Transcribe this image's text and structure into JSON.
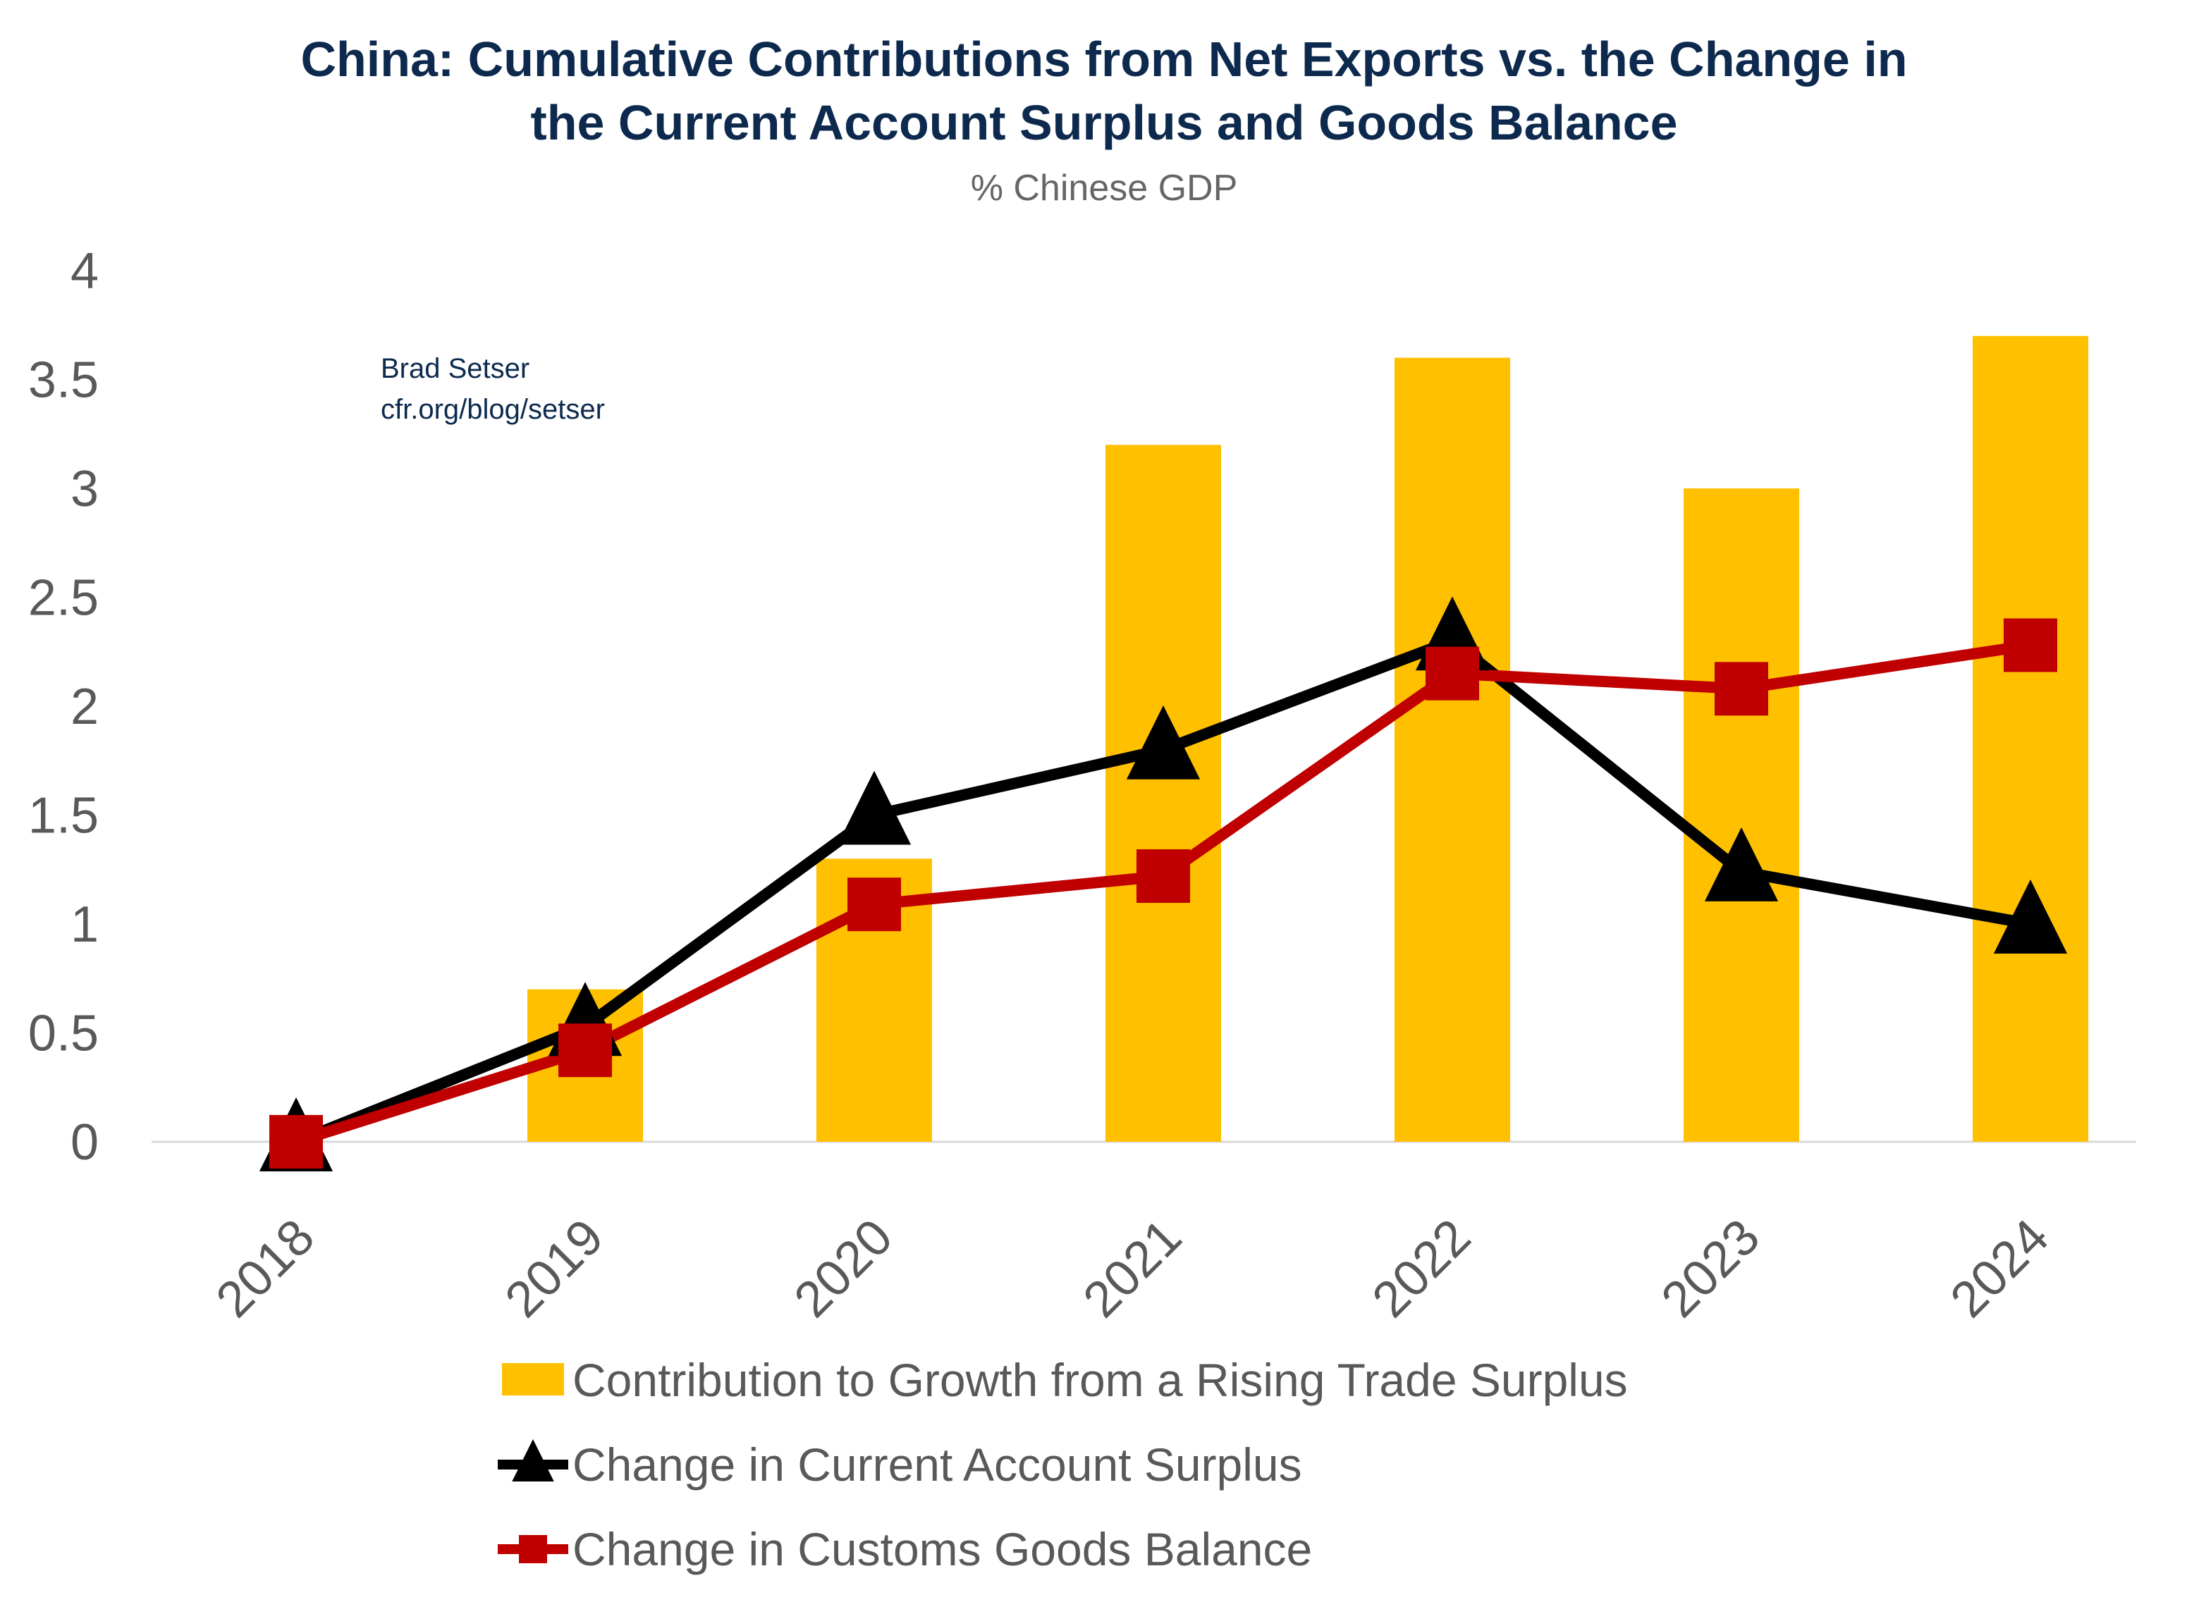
{
  "chart_data": {
    "type": "bar+line",
    "title_lines": [
      "China: Cumulative Contributions from Net Exports vs. the Change in",
      "the Current Account Surplus and Goods Balance"
    ],
    "subtitle": "% Chinese GDP",
    "annotation": [
      "Brad Setser",
      "cfr.org/blog/setser"
    ],
    "categories": [
      "2018",
      "2019",
      "2020",
      "2021",
      "2022",
      "2023",
      "2024"
    ],
    "ylim": [
      0,
      4
    ],
    "yticks": [
      "0",
      "0.5",
      "1",
      "1.5",
      "2",
      "2.5",
      "3",
      "3.5",
      "4"
    ],
    "grid": false,
    "legend_placement": "bottom",
    "series": [
      {
        "name": "Contribution to Growth from a Rising Trade Surplus",
        "type": "bar",
        "color": "#ffc000",
        "values": [
          0,
          0.7,
          1.3,
          3.2,
          3.6,
          3.0,
          3.7
        ]
      },
      {
        "name": "Change in Current Account Surplus",
        "type": "line",
        "marker": "triangle",
        "color": "#000000",
        "values": [
          0,
          0.53,
          1.5,
          1.8,
          2.3,
          1.24,
          1.0
        ]
      },
      {
        "name": "Change in Customs Goods Balance",
        "type": "line",
        "marker": "square",
        "color": "#c00000",
        "values": [
          0,
          0.42,
          1.09,
          1.22,
          2.15,
          2.08,
          2.28
        ]
      }
    ]
  }
}
